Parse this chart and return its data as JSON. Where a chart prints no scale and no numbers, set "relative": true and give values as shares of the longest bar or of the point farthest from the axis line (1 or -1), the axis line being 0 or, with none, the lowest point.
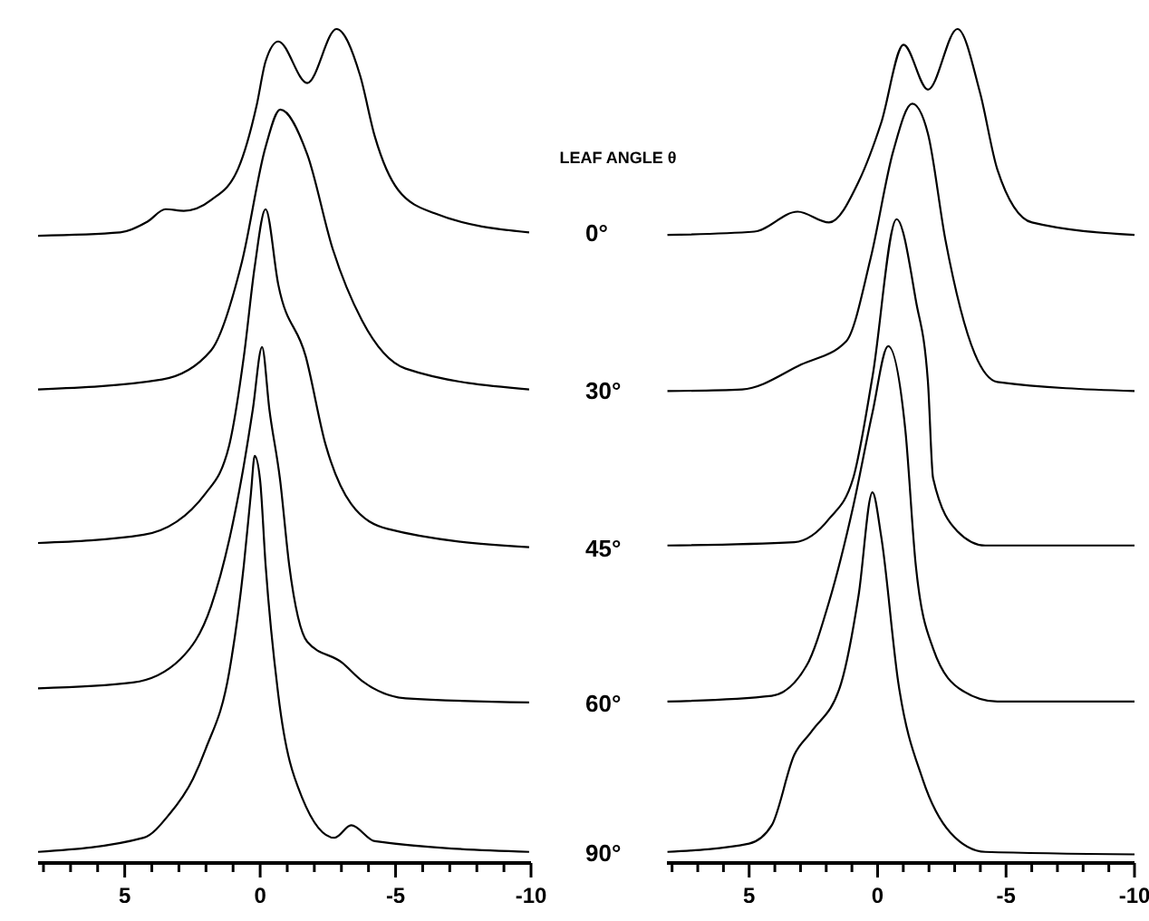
{
  "chart_data": [
    {
      "type": "line",
      "relative": true,
      "legend_title": "LEAF ANGLE θ",
      "xlim": [
        8.2,
        -10
      ],
      "xticks": [
        {
          "value": 8,
          "label": null
        },
        {
          "value": 7,
          "label": null
        },
        {
          "value": 6,
          "label": null
        },
        5,
        {
          "value": 4,
          "label": null
        },
        {
          "value": 3,
          "label": null
        },
        {
          "value": 2,
          "label": null
        },
        {
          "value": 1,
          "label": null
        },
        0,
        {
          "value": -1,
          "label": null
        },
        {
          "value": -2,
          "label": null
        },
        {
          "value": -3,
          "label": null
        },
        {
          "value": -4,
          "label": null
        },
        -5,
        {
          "value": -6,
          "label": null
        },
        {
          "value": -7,
          "label": null
        },
        {
          "value": -8,
          "label": null
        },
        {
          "value": -9,
          "label": null
        },
        -10
      ],
      "tick_labels": "x",
      "marker": "none",
      "line_style": "solid",
      "series": [
        {
          "name": "0°",
          "color": "#000000",
          "x": [
            8.2,
            5.17,
            4.16,
            3.49,
            2.82,
            1.81,
            0.81,
            0.13,
            -0.2,
            -0.67,
            -1.74,
            -2.82,
            -3.69,
            -4.23,
            -5.1,
            -6.44,
            -9.93
          ],
          "values": [
            0.751,
            0.755,
            0.768,
            0.783,
            0.781,
            0.794,
            0.832,
            0.908,
            0.961,
            0.985,
            0.935,
            1.0,
            0.944,
            0.871,
            0.806,
            0.778,
            0.755
          ]
        },
        {
          "name": "30°",
          "color": "#000000",
          "x": [
            8.2,
            3.62,
            1.81,
            0.67,
            -0.2,
            -0.74,
            -1.74,
            -2.68,
            -3.76,
            -5.37,
            -9.93
          ],
          "values": [
            0.566,
            0.578,
            0.613,
            0.72,
            0.858,
            0.903,
            0.849,
            0.735,
            0.649,
            0.591,
            0.566
          ]
        },
        {
          "name": "45°",
          "color": "#000000",
          "x": [
            8.2,
            4.3,
            2.01,
            1.14,
            0.6,
            0.2,
            -0.2,
            -0.67,
            -1.68,
            -2.42,
            -3.36,
            -4.7,
            -9.93
          ],
          "values": [
            0.381,
            0.391,
            0.441,
            0.499,
            0.606,
            0.714,
            0.783,
            0.692,
            0.606,
            0.499,
            0.428,
            0.398,
            0.376
          ]
        },
        {
          "name": "60°",
          "color": "#000000",
          "x": [
            8.2,
            4.7,
            2.95,
            1.81,
            1.14,
            0.67,
            0.27,
            -0.07,
            -0.34,
            -0.74,
            -1.07,
            -1.74,
            -3.02,
            -3.76,
            -5.37,
            -9.93
          ],
          "values": [
            0.206,
            0.213,
            0.241,
            0.305,
            0.385,
            0.462,
            0.542,
            0.617,
            0.542,
            0.456,
            0.355,
            0.262,
            0.237,
            0.215,
            0.194,
            0.189
          ]
        },
        {
          "name": "90°",
          "color": "#000000",
          "x": [
            8.2,
            4.3,
            3.36,
            2.48,
            2.01,
            1.14,
            0.6,
            0.34,
            0.2,
            0,
            -0.2,
            -0.67,
            -1.54,
            -2.75,
            -3.36,
            -4.23,
            -9.93
          ],
          "values": [
            0.009,
            0.026,
            0.054,
            0.097,
            0.133,
            0.226,
            0.355,
            0.441,
            0.486,
            0.456,
            0.355,
            0.198,
            0.075,
            0.026,
            0.041,
            0.022,
            0.009
          ]
        }
      ]
    },
    {
      "type": "line",
      "relative": true,
      "xlim": [
        8.2,
        -10
      ],
      "xticks": [
        {
          "value": 8,
          "label": null
        },
        {
          "value": 7,
          "label": null
        },
        {
          "value": 6,
          "label": null
        },
        5,
        {
          "value": 4,
          "label": null
        },
        {
          "value": 3,
          "label": null
        },
        {
          "value": 2,
          "label": null
        },
        {
          "value": 1,
          "label": null
        },
        0,
        {
          "value": -1,
          "label": null
        },
        {
          "value": -2,
          "label": null
        },
        {
          "value": -3,
          "label": null
        },
        {
          "value": -4,
          "label": null
        },
        -5,
        {
          "value": -6,
          "label": null
        },
        {
          "value": -7,
          "label": null
        },
        {
          "value": -8,
          "label": null
        },
        {
          "value": -9,
          "label": null
        },
        -10
      ],
      "tick_labels": "x",
      "marker": "none",
      "line_style": "solid",
      "series": [
        {
          "color": "#000000",
          "x": [
            8.18,
            4.8,
            3.11,
            1.89,
            0.74,
            -0.14,
            -1.01,
            -1.96,
            -3.11,
            -3.99,
            -4.66,
            -6.01,
            -10
          ],
          "values": [
            0.752,
            0.756,
            0.78,
            0.767,
            0.816,
            0.887,
            0.981,
            0.927,
            1.0,
            0.923,
            0.831,
            0.767,
            0.752
          ]
        },
        {
          "color": "#000000",
          "x": [
            8.18,
            5.27,
            2.97,
            1.22,
            0.27,
            -0.61,
            -1.35,
            -1.96,
            -2.64,
            -3.78,
            -4.66,
            -10
          ],
          "values": [
            0.564,
            0.566,
            0.596,
            0.624,
            0.724,
            0.853,
            0.91,
            0.874,
            0.746,
            0.609,
            0.575,
            0.564
          ]
        },
        {
          "color": "#000000",
          "x": [
            8.18,
            3.24,
            1.89,
            0.95,
            0.2,
            -0.74,
            -1.49,
            -1.96,
            -2.16,
            -3.11,
            -4.19,
            -10
          ],
          "values": [
            0.378,
            0.382,
            0.41,
            0.459,
            0.581,
            0.771,
            0.673,
            0.575,
            0.459,
            0.395,
            0.378,
            0.378
          ]
        },
        {
          "color": "#000000",
          "x": [
            8.18,
            4.12,
            2.77,
            1.89,
            0.95,
            0.2,
            -0.41,
            -1.08,
            -1.49,
            -2.16,
            -3.31,
            -4.66,
            -10
          ],
          "values": [
            0.19,
            0.197,
            0.233,
            0.31,
            0.425,
            0.538,
            0.618,
            0.517,
            0.353,
            0.254,
            0.203,
            0.19,
            0.19
          ]
        },
        {
          "color": "#000000",
          "x": [
            8.18,
            5,
            4.12,
            3.24,
            2.57,
            1.42,
            0.74,
            0.2,
            -0.14,
            -0.81,
            -1.76,
            -2.84,
            -4.19,
            -10
          ],
          "values": [
            0.009,
            0.019,
            0.041,
            0.126,
            0.154,
            0.212,
            0.318,
            0.442,
            0.389,
            0.212,
            0.096,
            0.032,
            0.009,
            0.006
          ]
        }
      ]
    }
  ]
}
